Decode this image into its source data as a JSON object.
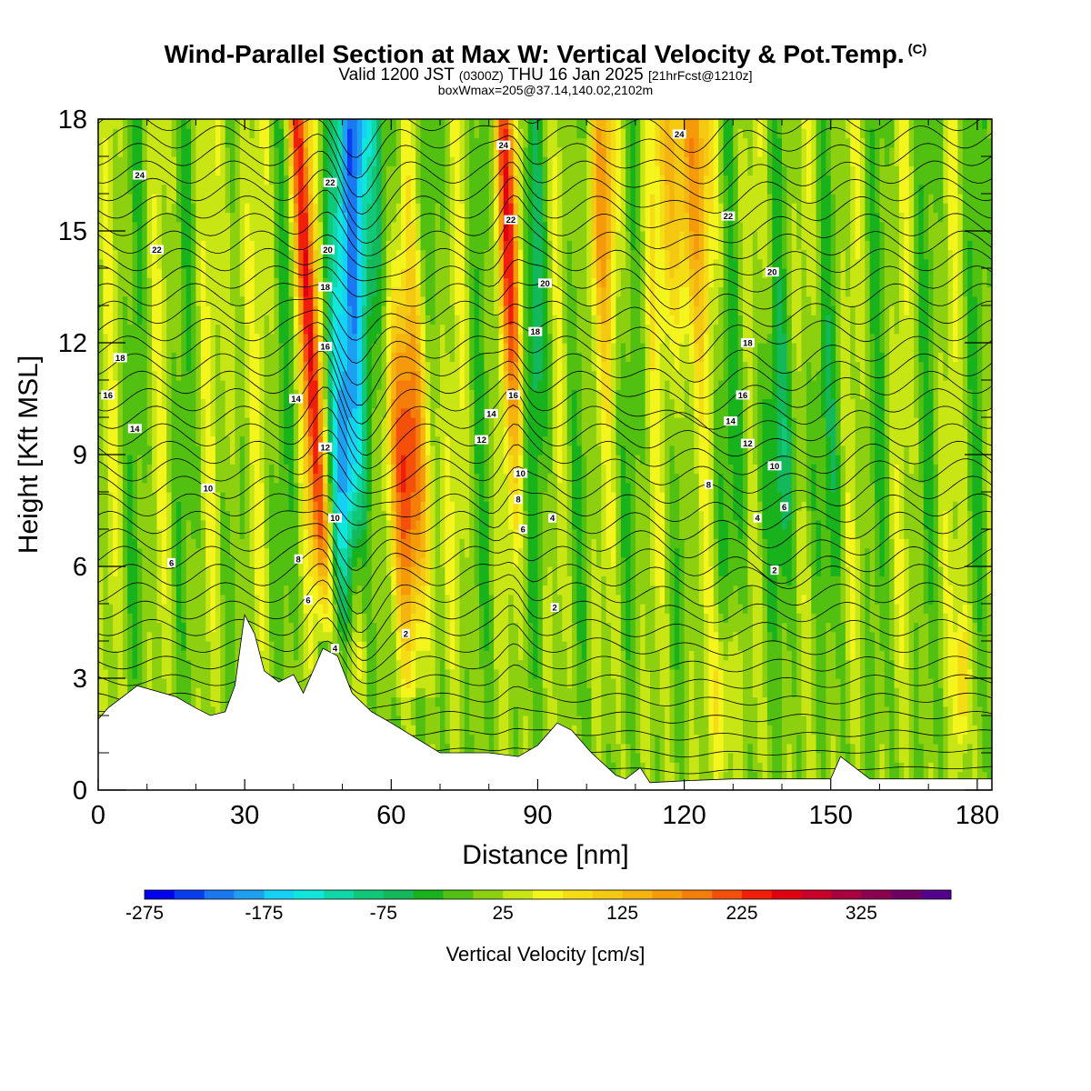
{
  "title": {
    "main": "Wind-Parallel Section at Max W: Vertical Velocity & Pot.Temp.",
    "copyright": "(C)",
    "valid_prefix": "Valid 1200 JST",
    "valid_z": "(0300Z)",
    "valid_date": "THU 16 Jan 2025",
    "forecast": "[21hrFcst@1210z]",
    "box": "boxWmax=205@37.14,140.02,2102m"
  },
  "chart_data": {
    "type": "heatmap",
    "xlabel": "Distance [nm]",
    "ylabel": "Height [Kft MSL]",
    "xlim": [
      0,
      183
    ],
    "ylim": [
      0,
      18
    ],
    "x_ticks": [
      "0",
      "30",
      "60",
      "90",
      "120",
      "150",
      "180"
    ],
    "y_ticks": [
      "0",
      "3",
      "6",
      "9",
      "12",
      "15",
      "18"
    ],
    "colorbar": {
      "label": "Vertical Velocity [cm/s]",
      "tick_labels": [
        "-275",
        "-175",
        "-75",
        "25",
        "125",
        "225",
        "325"
      ],
      "range": [
        -275,
        400
      ],
      "step": 25,
      "colors": [
        "#0000f0",
        "#0a3cf0",
        "#1a78f0",
        "#1ea0f0",
        "#14d2f5",
        "#10e6dc",
        "#10d7a8",
        "#10c878",
        "#12b85a",
        "#18b21c",
        "#52c010",
        "#8cd010",
        "#c8e614",
        "#f5f51e",
        "#f5dc14",
        "#f5c812",
        "#f5b40f",
        "#f59b0a",
        "#f57d0a",
        "#f5500a",
        "#f01e0a",
        "#e00010",
        "#c8002a",
        "#aa0040",
        "#8c0050",
        "#6e0064",
        "#55008c"
      ]
    },
    "w_values_cm_s": {
      "background": 12,
      "features": [
        {
          "kind": "updraft",
          "x_nm": [
            40,
            48
          ],
          "z_kft": [
            4,
            18
          ],
          "max": 240
        },
        {
          "kind": "downdraft",
          "x_nm": [
            44,
            60
          ],
          "z_kft": [
            4,
            18
          ],
          "min": -275
        },
        {
          "kind": "updraft",
          "x_nm": [
            62,
            85
          ],
          "z_kft": [
            3,
            18
          ],
          "max": 220
        },
        {
          "kind": "updraft",
          "x_nm": [
            115,
            130
          ],
          "z_kft": [
            9,
            18
          ],
          "max": 160
        },
        {
          "kind": "updraft",
          "x_nm": [
            176,
            178
          ],
          "z_kft": [
            1,
            5
          ],
          "max": 120
        }
      ]
    },
    "terrain_kft": [
      [
        0,
        1.9
      ],
      [
        2,
        2.2
      ],
      [
        5,
        2.5
      ],
      [
        8,
        2.8
      ],
      [
        16,
        2.5
      ],
      [
        20,
        2.2
      ],
      [
        23,
        2.0
      ],
      [
        26,
        2.1
      ],
      [
        28,
        2.8
      ],
      [
        30,
        4.7
      ],
      [
        32,
        4.2
      ],
      [
        34,
        3.2
      ],
      [
        37,
        2.9
      ],
      [
        40,
        3.1
      ],
      [
        42,
        2.6
      ],
      [
        46,
        3.8
      ],
      [
        49,
        3.6
      ],
      [
        52,
        2.6
      ],
      [
        56,
        2.1
      ],
      [
        60,
        1.8
      ],
      [
        65,
        1.4
      ],
      [
        70,
        1.0
      ],
      [
        80,
        1.0
      ],
      [
        86,
        0.9
      ],
      [
        90,
        1.2
      ],
      [
        94,
        1.8
      ],
      [
        97,
        1.6
      ],
      [
        101,
        1.0
      ],
      [
        106,
        0.4
      ],
      [
        108,
        0.3
      ],
      [
        111,
        0.6
      ],
      [
        113,
        0.2
      ],
      [
        120,
        0.25
      ],
      [
        130,
        0.3
      ],
      [
        140,
        0.3
      ],
      [
        150,
        0.3
      ],
      [
        152,
        0.9
      ],
      [
        155,
        0.6
      ],
      [
        158,
        0.3
      ],
      [
        170,
        0.3
      ],
      [
        183,
        0.3
      ]
    ],
    "theta_contour_labels": [
      {
        "label": "24",
        "x": 8.5,
        "y": 16.5
      },
      {
        "label": "22",
        "x": 12,
        "y": 14.5
      },
      {
        "label": "18",
        "x": 4.5,
        "y": 11.6
      },
      {
        "label": "16",
        "x": 2,
        "y": 10.6
      },
      {
        "label": "14",
        "x": 7.5,
        "y": 9.7
      },
      {
        "label": "10",
        "x": 22.5,
        "y": 8.1
      },
      {
        "label": "6",
        "x": 15,
        "y": 6.1
      },
      {
        "label": "22",
        "x": 47.5,
        "y": 16.3
      },
      {
        "label": "20",
        "x": 47,
        "y": 14.5
      },
      {
        "label": "18",
        "x": 46.5,
        "y": 13.5
      },
      {
        "label": "16",
        "x": 46.5,
        "y": 11.9
      },
      {
        "label": "14",
        "x": 40.5,
        "y": 10.5
      },
      {
        "label": "12",
        "x": 46.5,
        "y": 9.2
      },
      {
        "label": "10",
        "x": 48.5,
        "y": 7.3
      },
      {
        "label": "8",
        "x": 41,
        "y": 6.2
      },
      {
        "label": "6",
        "x": 43,
        "y": 5.1
      },
      {
        "label": "4",
        "x": 48.5,
        "y": 3.8
      },
      {
        "label": "2",
        "x": 63,
        "y": 4.2
      },
      {
        "label": "24",
        "x": 83,
        "y": 17.3
      },
      {
        "label": "22",
        "x": 84.5,
        "y": 15.3
      },
      {
        "label": "20",
        "x": 91.5,
        "y": 13.6
      },
      {
        "label": "18",
        "x": 89.5,
        "y": 12.3
      },
      {
        "label": "16",
        "x": 85,
        "y": 10.6
      },
      {
        "label": "14",
        "x": 80.5,
        "y": 10.1
      },
      {
        "label": "12",
        "x": 78.5,
        "y": 9.4
      },
      {
        "label": "10",
        "x": 86.5,
        "y": 8.5
      },
      {
        "label": "8",
        "x": 86,
        "y": 7.8
      },
      {
        "label": "6",
        "x": 87,
        "y": 7.0
      },
      {
        "label": "4",
        "x": 93,
        "y": 7.3
      },
      {
        "label": "2",
        "x": 93.5,
        "y": 4.9
      },
      {
        "label": "24",
        "x": 119,
        "y": 17.6
      },
      {
        "label": "22",
        "x": 129,
        "y": 15.4
      },
      {
        "label": "20",
        "x": 138,
        "y": 13.9
      },
      {
        "label": "18",
        "x": 133,
        "y": 12.0
      },
      {
        "label": "16",
        "x": 132,
        "y": 10.6
      },
      {
        "label": "14",
        "x": 129.5,
        "y": 9.9
      },
      {
        "label": "12",
        "x": 133,
        "y": 9.3
      },
      {
        "label": "10",
        "x": 138.5,
        "y": 8.7
      },
      {
        "label": "8",
        "x": 125,
        "y": 8.2
      },
      {
        "label": "6",
        "x": 140.5,
        "y": 7.6
      },
      {
        "label": "4",
        "x": 135,
        "y": 7.3
      },
      {
        "label": "2",
        "x": 138.5,
        "y": 5.9
      }
    ]
  }
}
